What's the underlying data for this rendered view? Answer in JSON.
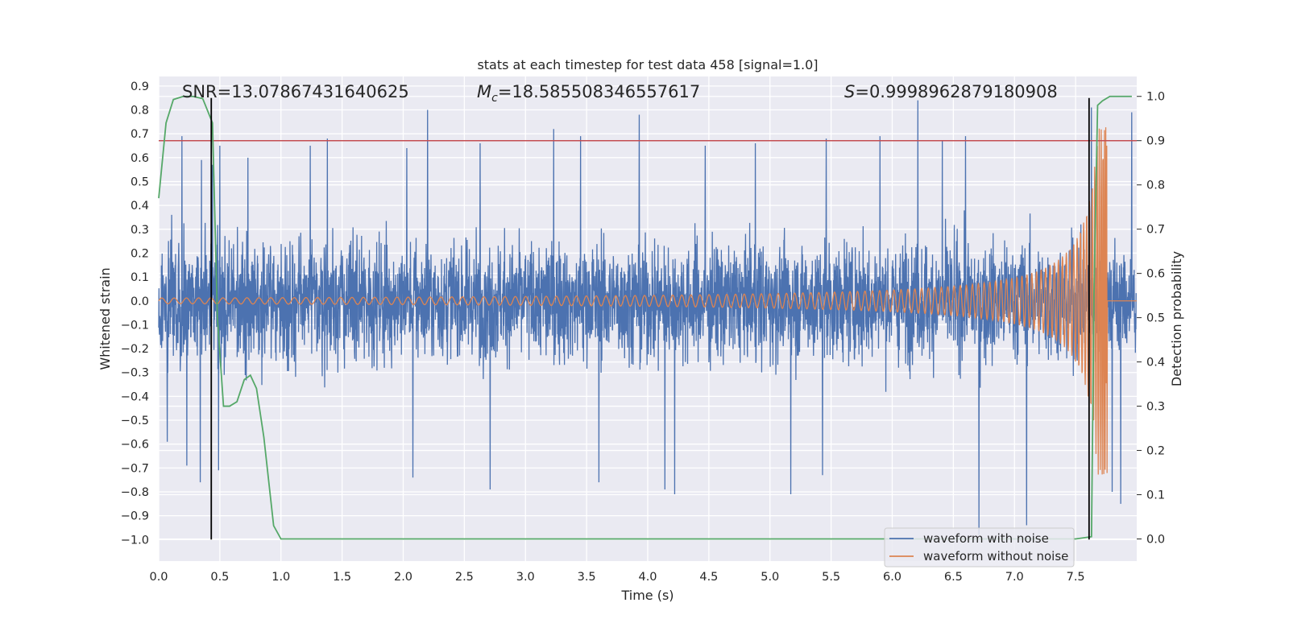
{
  "chart_data": {
    "type": "line",
    "title": "stats at each timestep for test data 458 [signal=1.0]",
    "xlabel": "Time (s)",
    "ylabel": "Whitened strain",
    "y2label": "Detection probability",
    "xlim": [
      0.0,
      8.0
    ],
    "ylim": [
      -1.09,
      0.94
    ],
    "y2lim": [
      -0.05,
      1.045
    ],
    "xticks": [
      0.0,
      0.5,
      1.0,
      1.5,
      2.0,
      2.5,
      3.0,
      3.5,
      4.0,
      4.5,
      5.0,
      5.5,
      6.0,
      6.5,
      7.0,
      7.5
    ],
    "xtick_labels": [
      "0.0",
      "0.5",
      "1.0",
      "1.5",
      "2.0",
      "2.5",
      "3.0",
      "3.5",
      "4.0",
      "4.5",
      "5.0",
      "5.5",
      "6.0",
      "6.5",
      "7.0",
      "7.5"
    ],
    "yticks": [
      0.9,
      0.8,
      0.7,
      0.6,
      0.5,
      0.4,
      0.3,
      0.2,
      0.1,
      0.0,
      -0.1,
      -0.2,
      -0.3,
      -0.4,
      -0.5,
      -0.6,
      -0.7,
      -0.8,
      -0.9,
      -1.0
    ],
    "ytick_labels": [
      "0.9",
      "0.8",
      "0.7",
      "0.6",
      "0.5",
      "0.4",
      "0.3",
      "0.2",
      "0.1",
      "0.0",
      "−0.1",
      "−0.2",
      "−0.3",
      "−0.4",
      "−0.5",
      "−0.6",
      "−0.7",
      "−0.8",
      "−0.9",
      "−1.0"
    ],
    "y2ticks": [
      1.0,
      0.9,
      0.8,
      0.7,
      0.6,
      0.5,
      0.4,
      0.3,
      0.2,
      0.1,
      0.0
    ],
    "y2tick_labels": [
      "1.0",
      "0.9",
      "0.8",
      "0.7",
      "0.6",
      "0.5",
      "0.4",
      "0.3",
      "0.2",
      "0.1",
      "0.0"
    ],
    "grid": true,
    "legend_position": "bottom-right",
    "annotations": {
      "snr": "SNR=13.07867431640625",
      "mc_symbol": "M",
      "mc_sub": "c",
      "mc_value": "=18.585508346557617",
      "s_symbol": "S",
      "s_value": "=0.9998962879180908"
    },
    "colors": {
      "background": "#eaeaf2",
      "grid": "#ffffff",
      "noisy": "#4c72b0",
      "clean": "#dd8452",
      "probability": "#55a868",
      "threshold": "#c44e52",
      "marker": "#000000"
    },
    "series": [
      {
        "name": "waveform with noise",
        "axis": "left",
        "description_of_shape": "dense random noise, typical range -0.55..0.55, peaks up to 0.85 and down to -1.0",
        "spikes": [
          {
            "x": 0.19,
            "y": 0.69
          },
          {
            "x": 0.35,
            "y": 0.59
          },
          {
            "x": 0.44,
            "y": 0.57
          },
          {
            "x": 0.5,
            "y": 0.65
          },
          {
            "x": 0.73,
            "y": 0.6
          },
          {
            "x": 1.24,
            "y": 0.65
          },
          {
            "x": 1.38,
            "y": 0.68
          },
          {
            "x": 2.03,
            "y": 0.64
          },
          {
            "x": 2.2,
            "y": 0.8
          },
          {
            "x": 2.63,
            "y": 0.66
          },
          {
            "x": 3.23,
            "y": 0.72
          },
          {
            "x": 3.45,
            "y": 0.69
          },
          {
            "x": 3.93,
            "y": 0.78
          },
          {
            "x": 4.47,
            "y": 0.65
          },
          {
            "x": 4.88,
            "y": 0.66
          },
          {
            "x": 5.46,
            "y": 0.68
          },
          {
            "x": 5.9,
            "y": 0.69
          },
          {
            "x": 6.21,
            "y": 0.84
          },
          {
            "x": 6.41,
            "y": 0.67
          },
          {
            "x": 6.6,
            "y": 0.69
          },
          {
            "x": 7.63,
            "y": 0.81
          },
          {
            "x": 7.96,
            "y": 0.79
          },
          {
            "x": 0.07,
            "y": -0.59
          },
          {
            "x": 0.23,
            "y": -0.69
          },
          {
            "x": 0.34,
            "y": -0.76
          },
          {
            "x": 0.49,
            "y": -0.71
          },
          {
            "x": 2.08,
            "y": -0.74
          },
          {
            "x": 2.71,
            "y": -0.79
          },
          {
            "x": 3.6,
            "y": -0.76
          },
          {
            "x": 4.14,
            "y": -0.79
          },
          {
            "x": 4.22,
            "y": -0.81
          },
          {
            "x": 5.17,
            "y": -0.81
          },
          {
            "x": 5.43,
            "y": -0.73
          },
          {
            "x": 6.71,
            "y": -0.98
          },
          {
            "x": 7.1,
            "y": -0.94
          },
          {
            "x": 7.8,
            "y": -0.8
          },
          {
            "x": 7.87,
            "y": -0.85
          }
        ]
      },
      {
        "name": "waveform without noise",
        "axis": "left",
        "description_of_shape": "chirp: amplitude ~0.01 at t=0 growing to ~0.73 peak near t=7.75, frequency rising, zero after merger",
        "chirp": {
          "t_start": 0.0,
          "t_merger": 7.76,
          "t_end": 8.0,
          "peak_amplitude": 0.73,
          "min_amplitude": 0.012
        }
      },
      {
        "name": "",
        "axis": "right",
        "x": [
          0.0,
          0.06,
          0.12,
          0.2,
          0.28,
          0.36,
          0.44,
          0.48,
          0.53,
          0.58,
          0.64,
          0.7,
          0.75,
          0.8,
          0.86,
          0.94,
          1.0,
          1.5,
          2.0,
          3.0,
          4.0,
          5.0,
          6.0,
          7.0,
          7.5,
          7.63,
          7.65,
          7.68,
          7.72,
          7.78,
          7.84,
          7.96
        ],
        "values": [
          0.77,
          0.94,
          0.993,
          1.0,
          1.0,
          0.995,
          0.94,
          0.5,
          0.3,
          0.3,
          0.31,
          0.36,
          0.37,
          0.34,
          0.23,
          0.03,
          0.0,
          0.0,
          0.0,
          0.0,
          0.0,
          0.0,
          0.0,
          0.0,
          0.0,
          0.005,
          0.55,
          0.98,
          0.99,
          1.0,
          1.0,
          1.0
        ]
      }
    ],
    "threshold_line": {
      "axis": "right",
      "y": 0.9
    },
    "vertical_markers": {
      "x": [
        0.43,
        7.61
      ],
      "ymin": -1.0,
      "ymax": 0.85
    }
  }
}
